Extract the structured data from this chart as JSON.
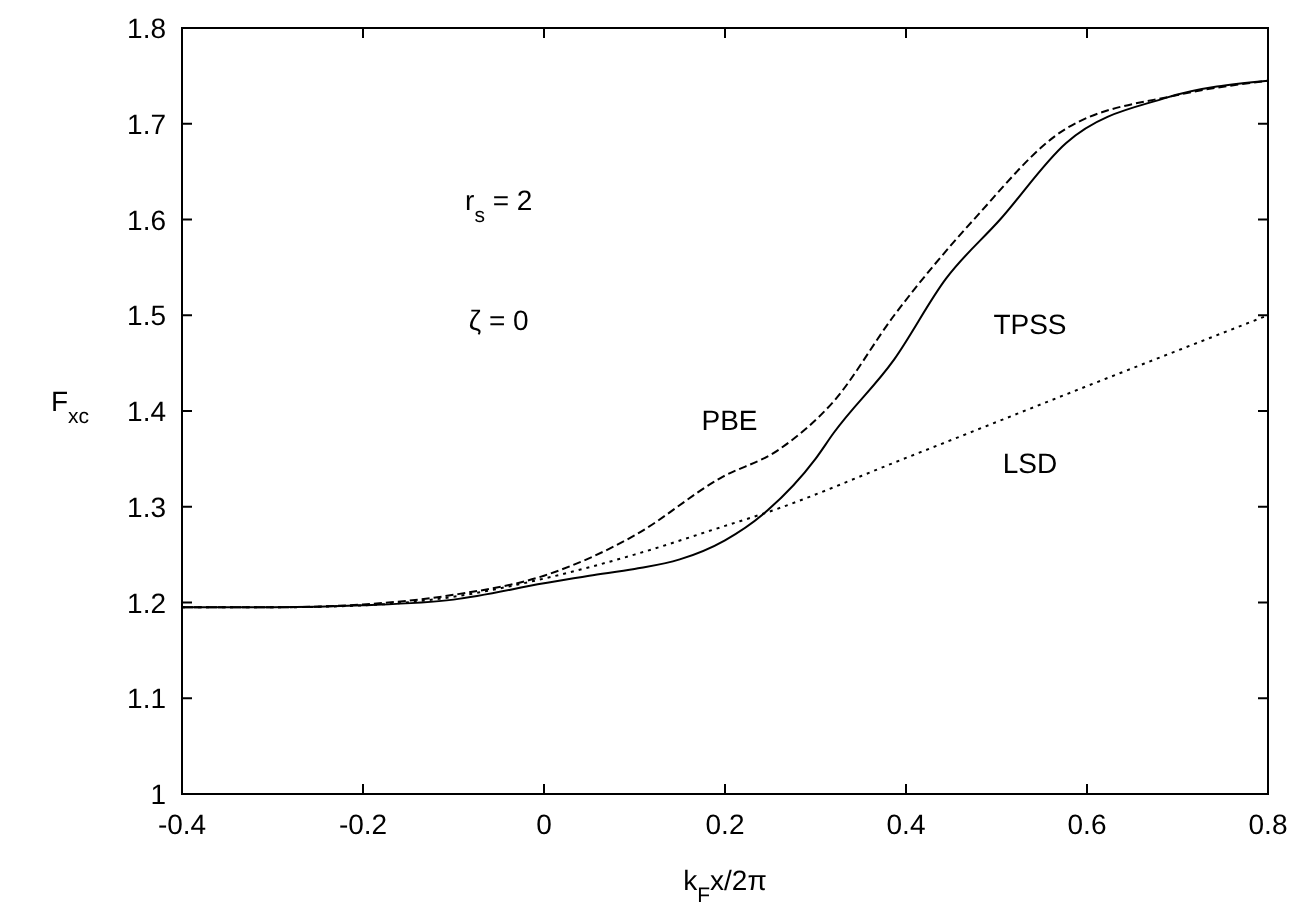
{
  "chart_data": {
    "type": "line",
    "xlabel": "k$_{F}$x/2π",
    "ylabel": "F$_{xc}$",
    "xlim": [
      -0.4,
      0.8
    ],
    "ylim": [
      1,
      1.8
    ],
    "xticks": [
      -0.4,
      -0.2,
      0,
      0.2,
      0.4,
      0.6,
      0.8
    ],
    "yticks": [
      1,
      1.1,
      1.2,
      1.3,
      1.4,
      1.5,
      1.6,
      1.7,
      1.8
    ],
    "grid": false,
    "annotations": [
      "r$_{s}$ = 2",
      "ζ = 0"
    ],
    "series": [
      {
        "name": "TPSS",
        "color": "#000000",
        "line_style": "solid",
        "x": [
          -0.4,
          -0.3,
          -0.2,
          -0.1,
          0,
          0.05,
          0.1,
          0.15,
          0.2,
          0.243,
          0.3,
          0.32,
          0.387,
          0.444,
          0.504,
          0.577,
          0.687,
          0.8
        ],
        "values": [
          1.195,
          1.195,
          1.197,
          1.203,
          1.22,
          1.228,
          1.235,
          1.245,
          1.265,
          1.293,
          1.35,
          1.377,
          1.454,
          1.538,
          1.6,
          1.68,
          1.727,
          1.745
        ]
      },
      {
        "name": "PBE",
        "color": "#000000",
        "line_style": "dashed",
        "x": [
          -0.4,
          -0.3,
          -0.2,
          -0.1,
          0,
          0.1,
          0.195,
          0.26,
          0.32,
          0.387,
          0.475,
          0.577,
          0.7,
          0.8
        ],
        "values": [
          1.195,
          1.195,
          1.198,
          1.208,
          1.228,
          1.27,
          1.33,
          1.36,
          1.41,
          1.5,
          1.6,
          1.695,
          1.73,
          1.745
        ]
      },
      {
        "name": "LSD",
        "color": "#000000",
        "line_style": "dotted",
        "x": [
          -0.4,
          -0.3,
          -0.2,
          -0.1,
          0,
          0.1,
          0.2,
          0.243,
          0.4,
          0.6,
          0.8
        ],
        "values": [
          1.195,
          1.195,
          1.197,
          1.206,
          1.225,
          1.25,
          1.28,
          1.293,
          1.351,
          1.426,
          1.5
        ]
      }
    ]
  }
}
